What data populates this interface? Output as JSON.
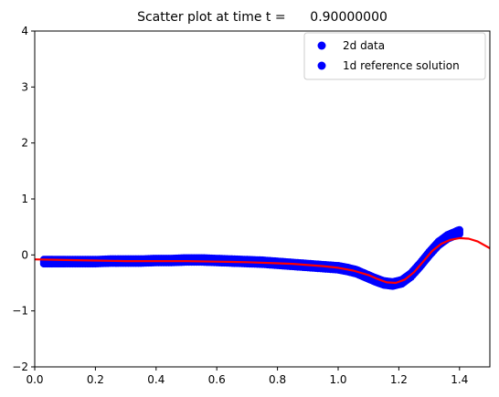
{
  "chart_data": {
    "type": "scatter",
    "title": "Scatter plot at time t =      0.90000000",
    "xlabel": "",
    "ylabel": "",
    "xlim": [
      0.0,
      1.5
    ],
    "ylim": [
      -2,
      4
    ],
    "xticks": [
      0.0,
      0.2,
      0.4,
      0.6,
      0.8,
      1.0,
      1.2,
      1.4
    ],
    "xtick_labels": [
      "0.0",
      "0.2",
      "0.4",
      "0.6",
      "0.8",
      "1.0",
      "1.2",
      "1.4"
    ],
    "yticks": [
      -2,
      -1,
      0,
      1,
      2,
      3,
      4
    ],
    "ytick_labels": [
      "−2",
      "−1",
      "0",
      "1",
      "2",
      "3",
      "4"
    ],
    "grid": false,
    "legend_position": "upper right",
    "series": [
      {
        "name": "2d data",
        "kind": "scatter",
        "color": "#0000ff",
        "x": [
          0.03,
          0.06,
          0.1,
          0.15,
          0.2,
          0.25,
          0.3,
          0.35,
          0.4,
          0.45,
          0.5,
          0.55,
          0.6,
          0.65,
          0.7,
          0.75,
          0.8,
          0.85,
          0.9,
          0.95,
          1.0,
          1.03,
          1.06,
          1.09,
          1.12,
          1.15,
          1.18,
          1.21,
          1.24,
          1.27,
          1.3,
          1.33,
          1.36,
          1.39,
          1.4
        ],
        "y": [
          -0.12,
          -0.12,
          -0.12,
          -0.12,
          -0.12,
          -0.11,
          -0.11,
          -0.11,
          -0.1,
          -0.1,
          -0.09,
          -0.09,
          -0.1,
          -0.11,
          -0.12,
          -0.13,
          -0.15,
          -0.17,
          -0.19,
          -0.21,
          -0.23,
          -0.26,
          -0.3,
          -0.37,
          -0.44,
          -0.5,
          -0.52,
          -0.48,
          -0.36,
          -0.18,
          0.02,
          0.2,
          0.32,
          0.39,
          0.41
        ]
      },
      {
        "name": "1d reference solution",
        "kind": "line",
        "color": "#ff0000",
        "x": [
          0.0,
          0.1,
          0.2,
          0.3,
          0.4,
          0.5,
          0.6,
          0.7,
          0.8,
          0.85,
          0.9,
          0.95,
          1.0,
          1.05,
          1.1,
          1.13,
          1.16,
          1.19,
          1.22,
          1.25,
          1.28,
          1.31,
          1.34,
          1.37,
          1.4,
          1.43,
          1.46,
          1.5
        ],
        "y": [
          -0.08,
          -0.09,
          -0.1,
          -0.11,
          -0.11,
          -0.11,
          -0.12,
          -0.13,
          -0.15,
          -0.16,
          -0.18,
          -0.2,
          -0.23,
          -0.28,
          -0.36,
          -0.43,
          -0.49,
          -0.5,
          -0.44,
          -0.31,
          -0.12,
          0.07,
          0.2,
          0.27,
          0.3,
          0.29,
          0.24,
          0.12
        ]
      }
    ]
  }
}
